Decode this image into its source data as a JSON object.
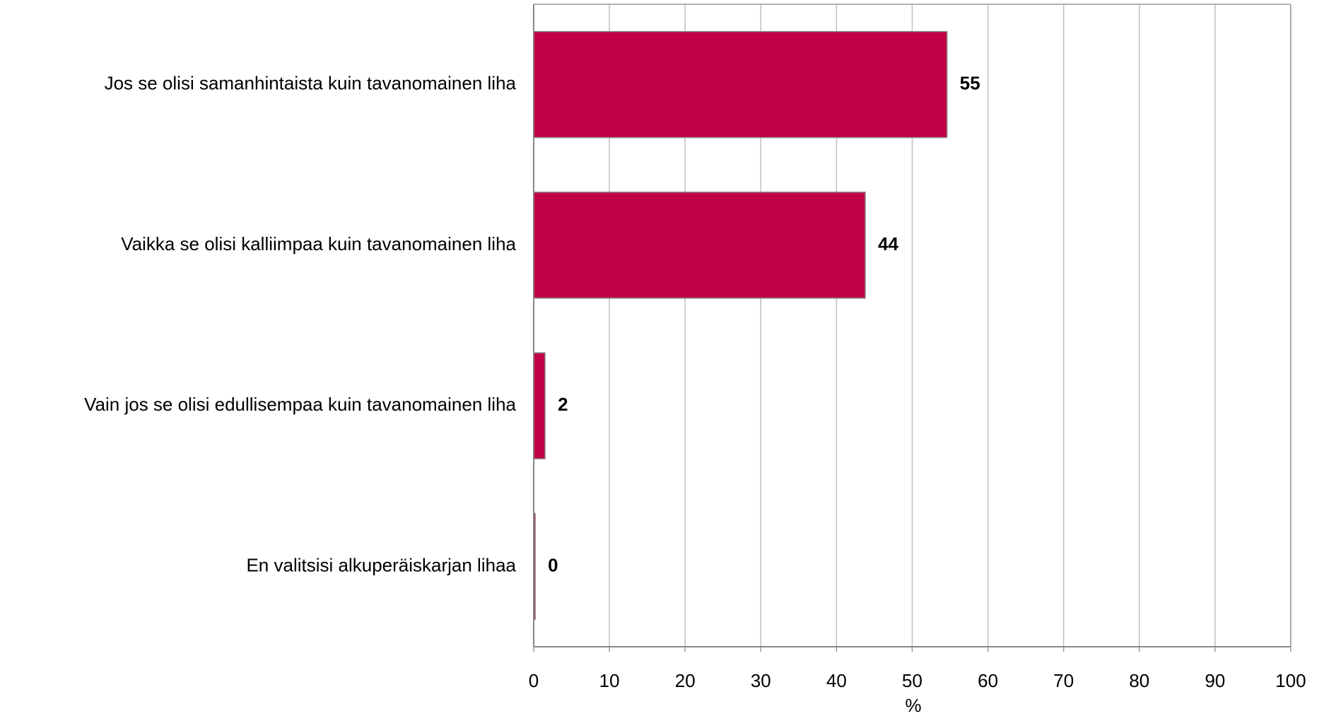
{
  "chart_data": {
    "type": "barh",
    "categories": [
      "Jos se olisi samanhintaista kuin tavanomainen liha",
      "Vaikka se olisi kalliimpaa kuin tavanomainen liha",
      "Vain jos se olisi edullisempaa kuin tavanomainen liha",
      "En valitsisi alkuperäiskarjan lihaa"
    ],
    "values": [
      54.6,
      43.8,
      1.5,
      0.2
    ],
    "value_labels": [
      "55",
      "44",
      "2",
      "0"
    ],
    "color": "#c20046",
    "xlabel": "%",
    "xlim": [
      0,
      100
    ],
    "xticks": [
      0,
      10,
      20,
      30,
      40,
      50,
      60,
      70,
      80,
      90,
      100
    ],
    "grid": true
  }
}
